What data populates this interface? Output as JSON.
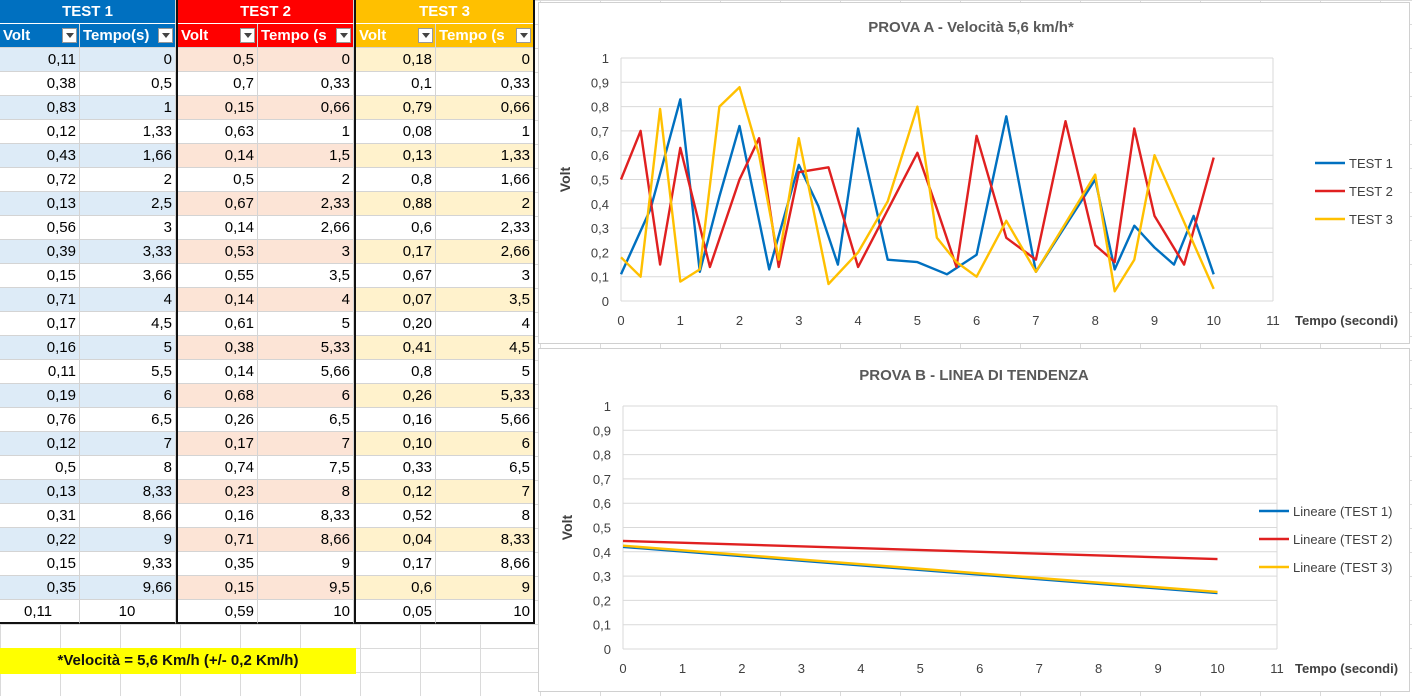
{
  "tables": [
    {
      "title": "TEST 1",
      "color": "#0070c0",
      "band": "#ddebf7",
      "volt_label": "Volt",
      "tempo_label": "Tempo(s)",
      "rows": [
        [
          "0,11",
          "0"
        ],
        [
          "0,38",
          "0,5"
        ],
        [
          "0,83",
          "1"
        ],
        [
          "0,12",
          "1,33"
        ],
        [
          "0,43",
          "1,66"
        ],
        [
          "0,72",
          "2"
        ],
        [
          "0,13",
          "2,5"
        ],
        [
          "0,56",
          "3"
        ],
        [
          "0,39",
          "3,33"
        ],
        [
          "0,15",
          "3,66"
        ],
        [
          "0,71",
          "4"
        ],
        [
          "0,17",
          "4,5"
        ],
        [
          "0,16",
          "5"
        ],
        [
          "0,11",
          "5,5"
        ],
        [
          "0,19",
          "6"
        ],
        [
          "0,76",
          "6,5"
        ],
        [
          "0,12",
          "7"
        ],
        [
          "0,5",
          "8"
        ],
        [
          "0,13",
          "8,33"
        ],
        [
          "0,31",
          "8,66"
        ],
        [
          "0,22",
          "9"
        ],
        [
          "0,15",
          "9,33"
        ],
        [
          "0,35",
          "9,66"
        ],
        [
          "0,11",
          "10"
        ]
      ]
    },
    {
      "title": "TEST 2",
      "color": "#ff0000",
      "band": "#fce4d6",
      "volt_label": "Volt",
      "tempo_label": "Tempo (s",
      "rows": [
        [
          "0,5",
          "0"
        ],
        [
          "0,7",
          "0,33"
        ],
        [
          "0,15",
          "0,66"
        ],
        [
          "0,63",
          "1"
        ],
        [
          "0,14",
          "1,5"
        ],
        [
          "0,5",
          "2"
        ],
        [
          "0,67",
          "2,33"
        ],
        [
          "0,14",
          "2,66"
        ],
        [
          "0,53",
          "3"
        ],
        [
          "0,55",
          "3,5"
        ],
        [
          "0,14",
          "4"
        ],
        [
          "0,61",
          "5"
        ],
        [
          "0,38",
          "5,33"
        ],
        [
          "0,14",
          "5,66"
        ],
        [
          "0,68",
          "6"
        ],
        [
          "0,26",
          "6,5"
        ],
        [
          "0,17",
          "7"
        ],
        [
          "0,74",
          "7,5"
        ],
        [
          "0,23",
          "8"
        ],
        [
          "0,16",
          "8,33"
        ],
        [
          "0,71",
          "8,66"
        ],
        [
          "0,35",
          "9"
        ],
        [
          "0,15",
          "9,5"
        ],
        [
          "0,59",
          "10"
        ]
      ]
    },
    {
      "title": "TEST 3",
      "color": "#ffc000",
      "band": "#fff2cc",
      "volt_label": "Volt",
      "tempo_label": "Tempo (s",
      "rows": [
        [
          "0,18",
          "0"
        ],
        [
          "0,1",
          "0,33"
        ],
        [
          "0,79",
          "0,66"
        ],
        [
          "0,08",
          "1"
        ],
        [
          "0,13",
          "1,33"
        ],
        [
          "0,8",
          "1,66"
        ],
        [
          "0,88",
          "2"
        ],
        [
          "0,6",
          "2,33"
        ],
        [
          "0,17",
          "2,66"
        ],
        [
          "0,67",
          "3"
        ],
        [
          "0,07",
          "3,5"
        ],
        [
          "0,20",
          "4"
        ],
        [
          "0,41",
          "4,5"
        ],
        [
          "0,8",
          "5"
        ],
        [
          "0,26",
          "5,33"
        ],
        [
          "0,16",
          "5,66"
        ],
        [
          "0,10",
          "6"
        ],
        [
          "0,33",
          "6,5"
        ],
        [
          "0,12",
          "7"
        ],
        [
          "0,52",
          "8"
        ],
        [
          "0,04",
          "8,33"
        ],
        [
          "0,17",
          "8,66"
        ],
        [
          "0,6",
          "9"
        ],
        [
          "0,05",
          "10"
        ]
      ]
    }
  ],
  "note": "*Velocità = 5,6 Km/h (+/- 0,2 Km/h)",
  "chart_data": [
    {
      "type": "line",
      "title": "PROVA A  - Velocità 5,6 km/h*",
      "xlabel": "Tempo (secondi)",
      "ylabel": "Volt",
      "xlim": [
        0,
        11
      ],
      "ylim": [
        0,
        1
      ],
      "xticks": [
        "0",
        "1",
        "2",
        "3",
        "4",
        "5",
        "6",
        "7",
        "8",
        "9",
        "10",
        "11"
      ],
      "yticks": [
        "0",
        "0,1",
        "0,2",
        "0,3",
        "0,4",
        "0,5",
        "0,6",
        "0,7",
        "0,8",
        "0,9",
        "1"
      ],
      "grid": true,
      "legend": "right",
      "series": [
        {
          "name": "TEST 1",
          "color": "#0070c0",
          "x": [
            0,
            0.5,
            1,
            1.33,
            1.66,
            2,
            2.5,
            3,
            3.33,
            3.66,
            4,
            4.5,
            5,
            5.5,
            6,
            6.5,
            7,
            8,
            8.33,
            8.66,
            9,
            9.33,
            9.66,
            10
          ],
          "y": [
            0.11,
            0.38,
            0.83,
            0.12,
            0.43,
            0.72,
            0.13,
            0.56,
            0.39,
            0.15,
            0.71,
            0.17,
            0.16,
            0.11,
            0.19,
            0.76,
            0.12,
            0.5,
            0.13,
            0.31,
            0.22,
            0.15,
            0.35,
            0.11
          ]
        },
        {
          "name": "TEST 2",
          "color": "#e02020",
          "x": [
            0,
            0.33,
            0.66,
            1,
            1.5,
            2,
            2.33,
            2.66,
            3,
            3.5,
            4,
            5,
            5.33,
            5.66,
            6,
            6.5,
            7,
            7.5,
            8,
            8.33,
            8.66,
            9,
            9.5,
            10
          ],
          "y": [
            0.5,
            0.7,
            0.15,
            0.63,
            0.14,
            0.5,
            0.67,
            0.14,
            0.53,
            0.55,
            0.14,
            0.61,
            0.38,
            0.14,
            0.68,
            0.26,
            0.17,
            0.74,
            0.23,
            0.16,
            0.71,
            0.35,
            0.15,
            0.59
          ]
        },
        {
          "name": "TEST 3",
          "color": "#ffc000",
          "x": [
            0,
            0.33,
            0.66,
            1,
            1.33,
            1.66,
            2,
            2.33,
            2.66,
            3,
            3.5,
            4,
            4.5,
            5,
            5.33,
            5.66,
            6,
            6.5,
            7,
            8,
            8.33,
            8.66,
            9,
            10
          ],
          "y": [
            0.18,
            0.1,
            0.79,
            0.08,
            0.13,
            0.8,
            0.88,
            0.6,
            0.17,
            0.67,
            0.07,
            0.2,
            0.41,
            0.8,
            0.26,
            0.16,
            0.1,
            0.33,
            0.12,
            0.52,
            0.04,
            0.17,
            0.6,
            0.05
          ]
        }
      ]
    },
    {
      "type": "line",
      "title": "PROVA B  -  LINEA DI TENDENZA",
      "xlabel": "Tempo (secondi)",
      "ylabel": "Volt",
      "xlim": [
        0,
        11
      ],
      "ylim": [
        0,
        1
      ],
      "xticks": [
        "0",
        "1",
        "2",
        "3",
        "4",
        "5",
        "6",
        "7",
        "8",
        "9",
        "10",
        "11"
      ],
      "yticks": [
        "0",
        "0,1",
        "0,2",
        "0,3",
        "0,4",
        "0,5",
        "0,6",
        "0,7",
        "0,8",
        "0,9",
        "1"
      ],
      "grid": true,
      "legend": "right",
      "series": [
        {
          "name": "Lineare (TEST 1)",
          "color": "#0070c0",
          "x": [
            0,
            10
          ],
          "y": [
            0.42,
            0.23
          ]
        },
        {
          "name": "Lineare (TEST 2)",
          "color": "#e02020",
          "x": [
            0,
            10
          ],
          "y": [
            0.445,
            0.37
          ]
        },
        {
          "name": "Lineare (TEST 3)",
          "color": "#ffc000",
          "x": [
            0,
            10
          ],
          "y": [
            0.425,
            0.235
          ]
        }
      ]
    }
  ]
}
